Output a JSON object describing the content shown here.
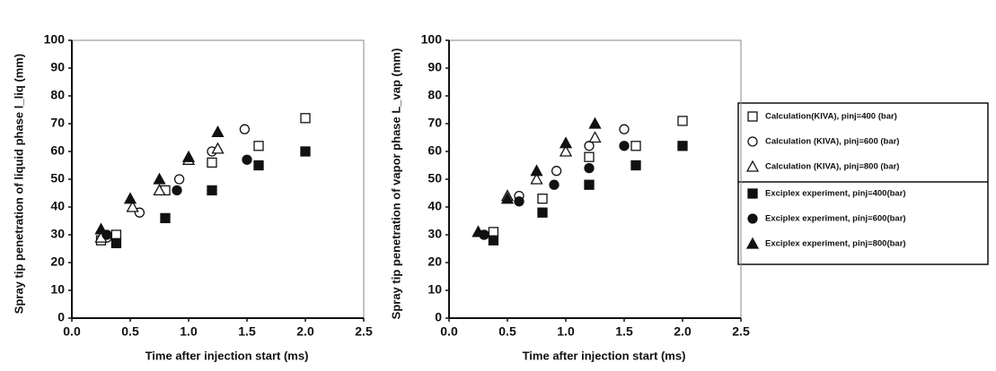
{
  "chart_data": [
    {
      "type": "scatter",
      "xlabel": "Time after  injection  start (ms)",
      "ylabel": "Spray tip penetration of liquid phase l_liq (mm)",
      "xlim": [
        0,
        2.5
      ],
      "ylim": [
        0,
        100
      ],
      "xticks": [
        {
          "value": 0,
          "label": "0.0"
        },
        0.5,
        {
          "value": 1,
          "label": "1.0"
        },
        1.5,
        {
          "value": 2,
          "label": "2.0"
        },
        2.5
      ],
      "yticks": [
        0,
        10,
        20,
        30,
        40,
        50,
        60,
        70,
        80,
        90,
        100
      ],
      "series": [
        {
          "name": "Calculation(KIVA), pinj=400 (bar)",
          "marker": "square",
          "filled": false,
          "color": "#111111",
          "x": [
            0.25,
            0.38,
            0.8,
            1.2,
            1.6,
            2.0
          ],
          "values": [
            28,
            30,
            46,
            56,
            62,
            72
          ]
        },
        {
          "name": "Calculation (KIVA), pinj=600 (bar)",
          "marker": "circle",
          "filled": false,
          "color": "#111111",
          "x": [
            0.3,
            0.58,
            0.92,
            1.2,
            1.48
          ],
          "values": [
            29,
            38,
            50,
            60,
            68
          ]
        },
        {
          "name": "Calculation (KIVA), pinj=800 (bar)",
          "marker": "triangle",
          "filled": false,
          "color": "#111111",
          "x": [
            0.25,
            0.52,
            0.75,
            1.0,
            1.25
          ],
          "values": [
            29,
            40,
            46,
            57,
            61
          ]
        },
        {
          "name": "Exciplex experiment, pinj=400(bar)",
          "marker": "square",
          "filled": true,
          "color": "#111111",
          "x": [
            0.38,
            0.8,
            1.2,
            1.6,
            2.0
          ],
          "values": [
            27,
            36,
            46,
            55,
            60
          ]
        },
        {
          "name": "Exciplex experiment, pinj=600(bar)",
          "marker": "circle",
          "filled": true,
          "color": "#111111",
          "x": [
            0.3,
            0.9,
            1.5
          ],
          "values": [
            30,
            46,
            57
          ]
        },
        {
          "name": "Exciplex experiment, pinj=800(bar)",
          "marker": "triangle",
          "filled": true,
          "color": "#111111",
          "x": [
            0.25,
            0.5,
            0.75,
            1.0,
            1.25
          ],
          "values": [
            32,
            43,
            50,
            58,
            67
          ]
        }
      ]
    },
    {
      "type": "scatter",
      "xlabel": "Time after  injection  start (ms)",
      "ylabel": "Spray tip penetration of vapor phase L_vap (mm)",
      "xlim": [
        0,
        2.5
      ],
      "ylim": [
        0,
        100
      ],
      "xticks": [
        {
          "value": 0,
          "label": "0.0"
        },
        0.5,
        {
          "value": 1,
          "label": "1.0"
        },
        1.5,
        {
          "value": 2,
          "label": "2.0"
        },
        2.5
      ],
      "yticks": [
        0,
        10,
        20,
        30,
        40,
        50,
        60,
        70,
        80,
        90,
        100
      ],
      "series": [
        {
          "marker": "square",
          "filled": false,
          "color": "#111111",
          "x": [
            0.38,
            0.8,
            1.2,
            1.6,
            2.0
          ],
          "values": [
            31,
            43,
            58,
            62,
            71
          ]
        },
        {
          "marker": "circle",
          "filled": false,
          "color": "#111111",
          "x": [
            0.3,
            0.6,
            0.92,
            1.2,
            1.5
          ],
          "values": [
            30,
            44,
            53,
            62,
            68
          ]
        },
        {
          "marker": "triangle",
          "filled": false,
          "color": "#111111",
          "x": [
            0.25,
            0.5,
            0.75,
            1.0,
            1.25
          ],
          "values": [
            31,
            44,
            50,
            60,
            65
          ]
        },
        {
          "marker": "square",
          "filled": true,
          "color": "#111111",
          "x": [
            0.38,
            0.8,
            1.2,
            1.6,
            2.0
          ],
          "values": [
            28,
            38,
            48,
            55,
            62
          ]
        },
        {
          "marker": "circle",
          "filled": true,
          "color": "#111111",
          "x": [
            0.3,
            0.6,
            0.9,
            1.2,
            1.5
          ],
          "values": [
            30,
            42,
            48,
            54,
            62
          ]
        },
        {
          "marker": "triangle",
          "filled": true,
          "color": "#111111",
          "x": [
            0.25,
            0.5,
            0.75,
            1.0,
            1.25
          ],
          "values": [
            31,
            43,
            53,
            63,
            70
          ]
        }
      ]
    }
  ]
}
